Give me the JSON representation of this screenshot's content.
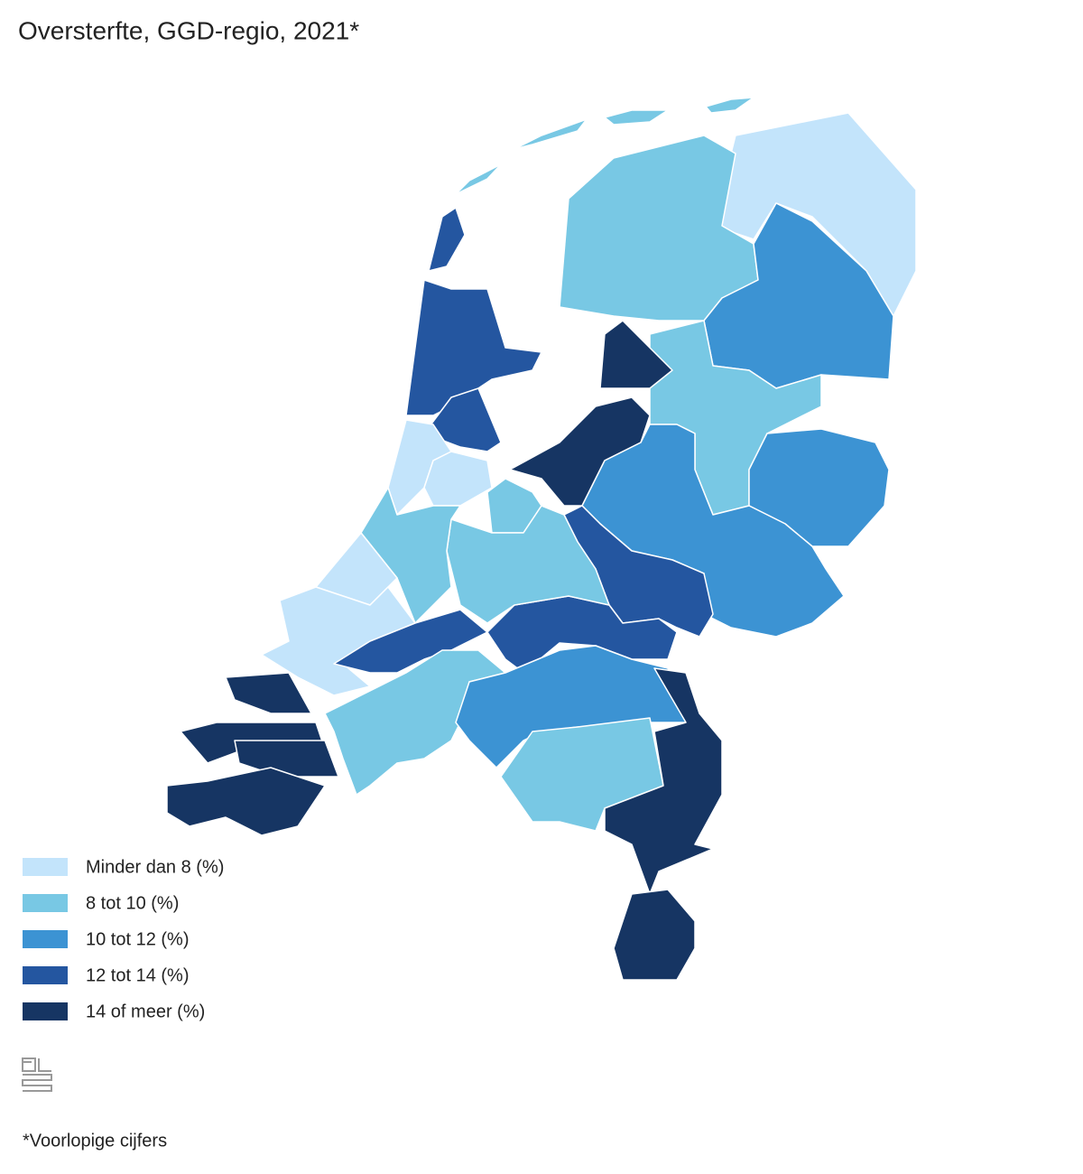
{
  "title": "Oversterfte, GGD-regio, 2021*",
  "legend": [
    {
      "label": "Minder dan 8 (%)",
      "color": "#c3e4fb"
    },
    {
      "label": "8 tot 10 (%)",
      "color": "#78c8e4"
    },
    {
      "label": "10 tot 12 (%)",
      "color": "#3c93d3"
    },
    {
      "label": "12 tot 14 (%)",
      "color": "#2456a0"
    },
    {
      "label": "14 of meer (%)",
      "color": "#163563"
    }
  ],
  "footnote": "*Voorlopige cijfers"
}
